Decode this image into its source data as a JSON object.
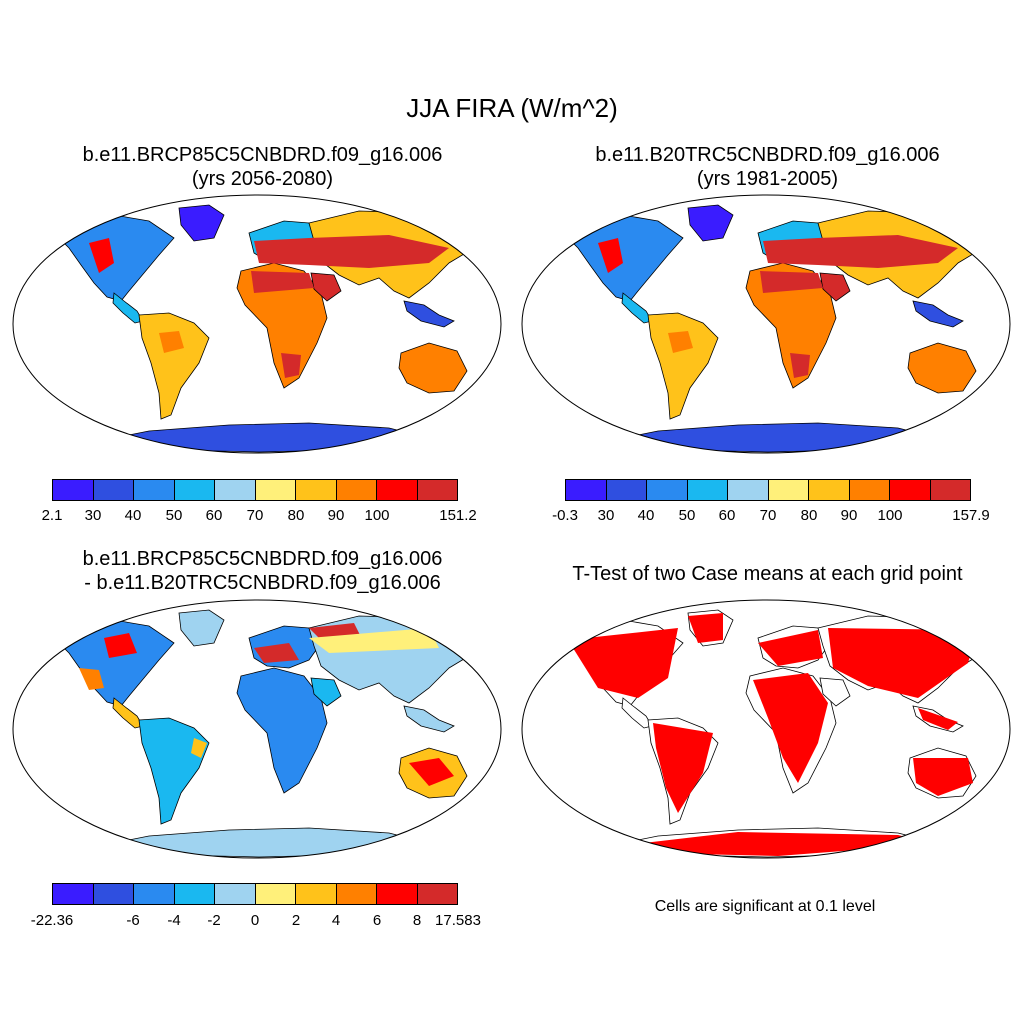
{
  "title": "JJA FIRA (W/m^2)",
  "panels": {
    "top_left": {
      "title_line1": "b.e11.BRCP85C5CNBDRD.f09_g16.006",
      "title_line2": "(yrs 2056-2080)",
      "colorbar_labels": [
        "2.1",
        "30",
        "40",
        "50",
        "60",
        "70",
        "80",
        "90",
        "100",
        "151.2"
      ]
    },
    "top_right": {
      "title_line1": "b.e11.B20TRC5CNBDRD.f09_g16.006",
      "title_line2": "(yrs 1981-2005)",
      "colorbar_labels": [
        "-0.3",
        "30",
        "40",
        "50",
        "60",
        "70",
        "80",
        "90",
        "100",
        "157.9"
      ]
    },
    "bottom_left": {
      "title_line1": "b.e11.BRCP85C5CNBDRD.f09_g16.006",
      "title_line2": "- b.e11.B20TRC5CNBDRD.f09_g16.006",
      "colorbar_labels": [
        "-22.36",
        "-6",
        "-4",
        "-2",
        "0",
        "2",
        "4",
        "6",
        "8",
        "17.583"
      ]
    },
    "bottom_right": {
      "title_line1": "T-Test of two Case means at each grid point",
      "note": "Cells are significant at 0.1 level"
    }
  },
  "colors": {
    "palette": [
      "#3a1cff",
      "#2f4fe0",
      "#2a8af0",
      "#1ab8f0",
      "#9fd3f0",
      "#fff07a",
      "#ffc21a",
      "#ff8000",
      "#ff0000",
      "#d42a2a"
    ],
    "significance": "#ff0000",
    "land_outline": "#000000"
  }
}
